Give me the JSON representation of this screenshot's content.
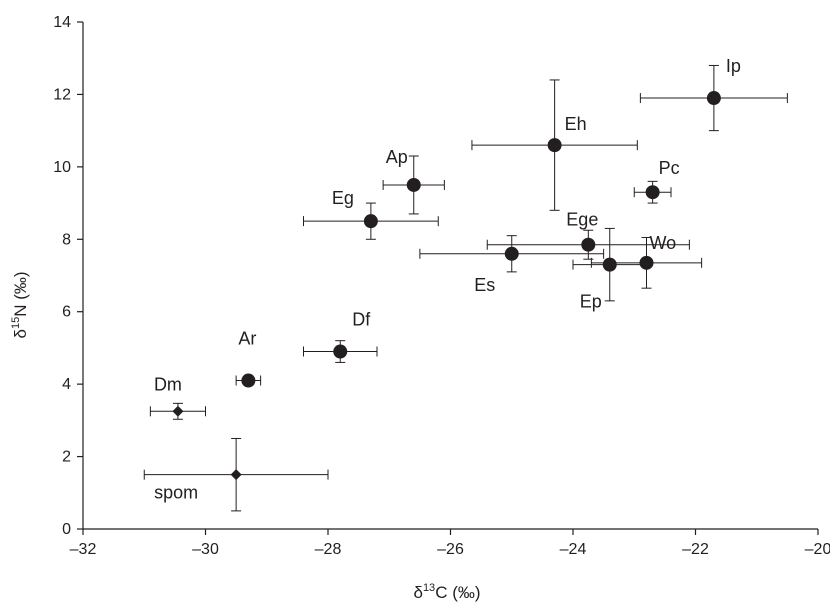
{
  "chart_data": {
    "type": "scatter",
    "title": "",
    "xlabel": {
      "prefix": "δ",
      "sup": "13",
      "suffix": "C (‰)"
    },
    "ylabel": {
      "prefix": "δ",
      "sup": "15",
      "suffix": "N (‰)"
    },
    "xlim": [
      -32,
      -20
    ],
    "ylim": [
      0,
      14
    ],
    "xticks": [
      -32,
      -30,
      -28,
      -26,
      -24,
      -22,
      -20
    ],
    "xtick_labels": [
      "–32",
      "–30",
      "–28",
      "–26",
      "–24",
      "–22",
      "–20"
    ],
    "yticks": [
      0,
      2,
      4,
      6,
      8,
      10,
      12,
      14
    ],
    "ytick_labels": [
      "0",
      "2",
      "4",
      "6",
      "8",
      "10",
      "12",
      "14"
    ],
    "grid": false,
    "marker_color": "#231f20",
    "points": [
      {
        "label": "Ip",
        "x": -21.7,
        "y": 11.9,
        "xerr": 1.2,
        "yerr": 0.9,
        "marker": "circle"
      },
      {
        "label": "Eh",
        "x": -24.3,
        "y": 10.6,
        "xerr": 1.35,
        "yerr": 1.8,
        "marker": "circle"
      },
      {
        "label": "Pc",
        "x": -22.7,
        "y": 9.3,
        "xerr": 0.3,
        "yerr": 0.3,
        "marker": "circle"
      },
      {
        "label": "Ap",
        "x": -26.6,
        "y": 9.5,
        "xerr": 0.5,
        "yerr": 0.8,
        "marker": "circle"
      },
      {
        "label": "Eg",
        "x": -27.3,
        "y": 8.5,
        "xerr": 1.1,
        "yerr": 0.5,
        "marker": "circle"
      },
      {
        "label": "Ege",
        "x": -23.75,
        "y": 7.85,
        "xerr": 1.65,
        "yerr": 0.4,
        "marker": "circle"
      },
      {
        "label": "Wo",
        "x": -22.8,
        "y": 7.35,
        "xerr": 0.9,
        "yerr": 0.7,
        "marker": "circle"
      },
      {
        "label": "Es",
        "x": -25.0,
        "y": 7.6,
        "xerr": 1.5,
        "yerr": 0.5,
        "marker": "circle"
      },
      {
        "label": "Ep",
        "x": -23.4,
        "y": 7.3,
        "xerr": 0.6,
        "yerr": 1.0,
        "marker": "circle"
      },
      {
        "label": "Df",
        "x": -27.8,
        "y": 4.9,
        "xerr": 0.6,
        "yerr": 0.3,
        "marker": "circle"
      },
      {
        "label": "Ar",
        "x": -29.3,
        "y": 4.1,
        "xerr": 0.2,
        "yerr": 0.0,
        "marker": "circle"
      },
      {
        "label": "Dm",
        "x": -30.45,
        "y": 3.25,
        "xerr": 0.45,
        "yerr": 0.22,
        "marker": "diamond"
      },
      {
        "label": "spom",
        "x": -29.5,
        "y": 1.5,
        "xerr": 1.5,
        "yerr": 1.0,
        "marker": "diamond"
      }
    ]
  }
}
